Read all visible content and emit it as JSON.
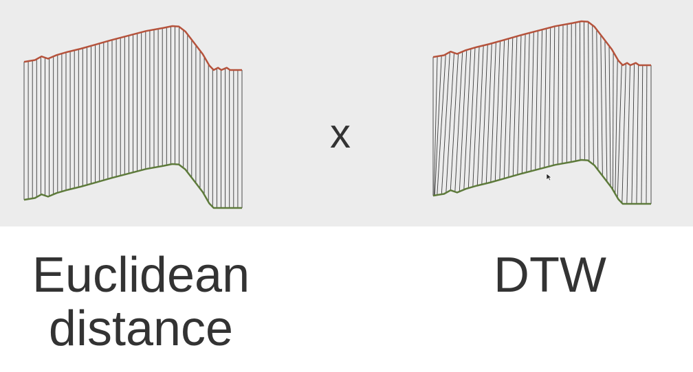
{
  "captions": {
    "left_line1": "Euclidean",
    "left_line2": "distance",
    "right": "DTW",
    "middle": "x"
  },
  "colors": {
    "panel_background": "#ececec",
    "top_series": "#b5523b",
    "bottom_series": "#5d7a3a",
    "connector": "#3a3a3a",
    "text": "#333333"
  },
  "icons": {
    "cursor": "mouse-pointer-icon"
  }
}
